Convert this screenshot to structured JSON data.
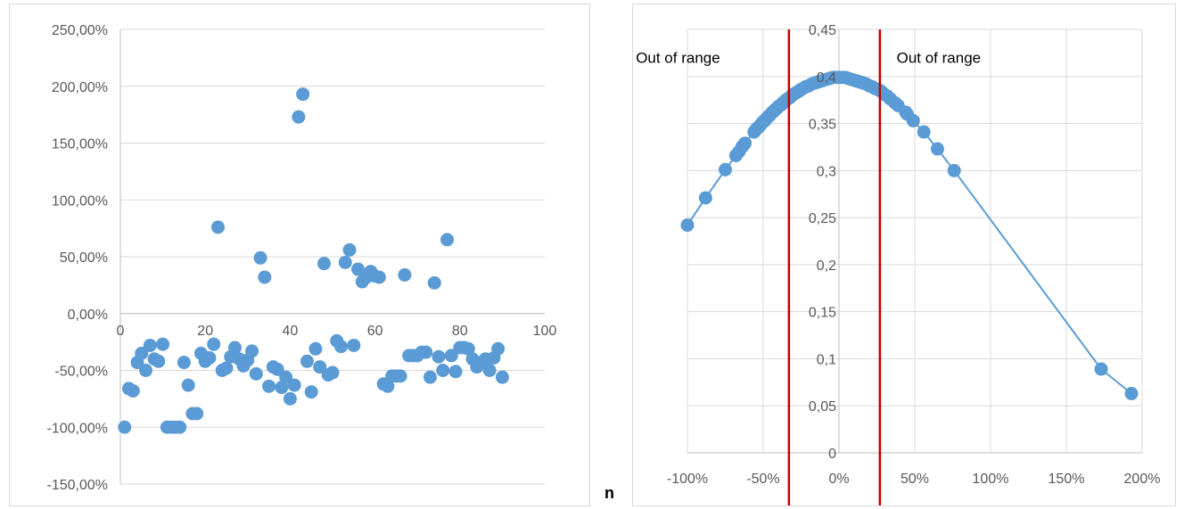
{
  "stray_label": "n",
  "chart_data": [
    {
      "type": "scatter",
      "title": "",
      "xlabel": "",
      "ylabel": "",
      "xlim": [
        0,
        100
      ],
      "ylim": [
        -150,
        250
      ],
      "x_ticks": [
        0,
        20,
        40,
        60,
        80,
        100
      ],
      "x_tick_labels": [
        "0",
        "20",
        "40",
        "60",
        "80",
        "100"
      ],
      "y_ticks": [
        -150,
        -100,
        -50,
        0,
        50,
        100,
        150,
        200,
        250
      ],
      "y_tick_labels": [
        "-150,00%",
        "-100,00%",
        "-50,00%",
        "0,00%",
        "50,00%",
        "100,00%",
        "150,00%",
        "200,00%",
        "250,00%"
      ],
      "grid": "horizontal",
      "marker_color": "#5b9bd5",
      "series": [
        {
          "x": [
            1,
            2,
            3,
            4,
            5,
            6,
            7,
            8,
            9,
            10,
            11,
            12,
            13,
            14,
            15,
            16,
            17,
            18,
            19,
            20,
            21,
            22,
            23,
            24,
            25,
            26,
            27,
            28,
            29,
            30,
            31,
            32,
            33,
            34,
            35,
            36,
            37,
            38,
            39,
            40,
            41,
            42,
            43,
            44,
            45,
            46,
            47,
            48,
            49,
            50,
            51,
            52,
            53,
            54,
            55,
            56,
            57,
            58,
            59,
            60,
            61,
            62,
            63,
            64,
            65,
            66,
            67,
            68,
            69,
            70,
            71,
            72,
            73,
            74,
            75,
            76,
            77,
            78,
            79,
            80,
            81,
            82,
            83,
            84,
            85,
            86,
            87,
            88,
            89,
            90
          ],
          "y": [
            -100,
            -66,
            -68,
            -43,
            -35,
            -50,
            -28,
            -40,
            -42,
            -27,
            -100,
            -100,
            -100,
            -100,
            -43,
            -63,
            -88,
            -88,
            -35,
            -42,
            -39,
            -27,
            76,
            -50,
            -48,
            -38,
            -30,
            -40,
            -46,
            -41,
            -33,
            -53,
            49,
            32,
            -64,
            -47,
            -49,
            -65,
            -56,
            -75,
            -63,
            173,
            193,
            -42,
            -69,
            -31,
            -47,
            44,
            -54,
            -52,
            -24,
            -29,
            45,
            56,
            -28,
            39,
            28,
            32,
            37,
            33,
            32,
            -62,
            -64,
            -55,
            -55,
            -55,
            34,
            -37,
            -37,
            -37,
            -34,
            -34,
            -56,
            27,
            -38,
            -50,
            65,
            -37,
            -51,
            -30,
            -30,
            -31,
            -40,
            -47,
            -43,
            -40,
            -50,
            -39,
            -31,
            -56
          ]
        }
      ]
    },
    {
      "type": "line",
      "title": "",
      "xlabel": "",
      "ylabel": "",
      "xlim": [
        -100,
        200
      ],
      "ylim": [
        0,
        0.45
      ],
      "x_ticks": [
        -100,
        -50,
        0,
        50,
        100,
        150,
        200
      ],
      "x_tick_labels": [
        "-100%",
        "-50%",
        "0%",
        "50%",
        "100%",
        "150%",
        "200%"
      ],
      "y_ticks": [
        0,
        0.05,
        0.1,
        0.15,
        0.2,
        0.25,
        0.3,
        0.35,
        0.4,
        0.45
      ],
      "y_tick_labels": [
        "0",
        "0,05",
        "0,1",
        "0,15",
        "0,2",
        "0,25",
        "0,3",
        "0,35",
        "0,4",
        "0,45"
      ],
      "grid": "both",
      "marker_color": "#5b9bd5",
      "series": [
        {
          "x": [
            -100,
            -88,
            -75,
            -68,
            -66,
            -64,
            -63,
            -62,
            -56,
            -55,
            -54,
            -53,
            -52,
            -51,
            -50,
            -49,
            -48,
            -47,
            -46,
            -45,
            -44,
            -43,
            -42,
            -41,
            -40,
            -39,
            -38,
            -37,
            -36,
            -35,
            -34,
            -33,
            -32,
            -31,
            -30,
            -29,
            -28,
            -27,
            -26,
            -25,
            -24,
            -22,
            -20,
            -18,
            -16,
            -14,
            -12,
            -10,
            -8,
            -6,
            -4,
            -2,
            0,
            2,
            4,
            6,
            8,
            10,
            12,
            14,
            16,
            18,
            20,
            22,
            24,
            26,
            27,
            28,
            30,
            32,
            34,
            37,
            39,
            44,
            45,
            49,
            56,
            65,
            76,
            173,
            193
          ],
          "y": [
            0.242,
            0.271,
            0.301,
            0.316,
            0.32,
            0.325,
            0.327,
            0.329,
            0.341,
            0.343,
            0.345,
            0.346,
            0.348,
            0.35,
            0.352,
            0.353,
            0.355,
            0.357,
            0.358,
            0.36,
            0.362,
            0.363,
            0.365,
            0.366,
            0.368,
            0.369,
            0.37,
            0.372,
            0.373,
            0.375,
            0.376,
            0.377,
            0.378,
            0.38,
            0.381,
            0.382,
            0.383,
            0.384,
            0.385,
            0.386,
            0.387,
            0.389,
            0.39,
            0.392,
            0.393,
            0.394,
            0.395,
            0.396,
            0.397,
            0.398,
            0.399,
            0.399,
            0.399,
            0.399,
            0.399,
            0.398,
            0.397,
            0.396,
            0.395,
            0.394,
            0.393,
            0.392,
            0.39,
            0.389,
            0.387,
            0.386,
            0.385,
            0.384,
            0.381,
            0.379,
            0.376,
            0.372,
            0.369,
            0.362,
            0.36,
            0.353,
            0.341,
            0.323,
            0.3,
            0.089,
            0.063
          ]
        }
      ],
      "vlines": [
        -33,
        27
      ],
      "vline_color": "#c00000",
      "annotations": [
        {
          "text": "Out of range",
          "x": -134,
          "y": 0.42
        },
        {
          "text": "Out of range",
          "x": 38,
          "y": 0.42
        }
      ]
    }
  ]
}
